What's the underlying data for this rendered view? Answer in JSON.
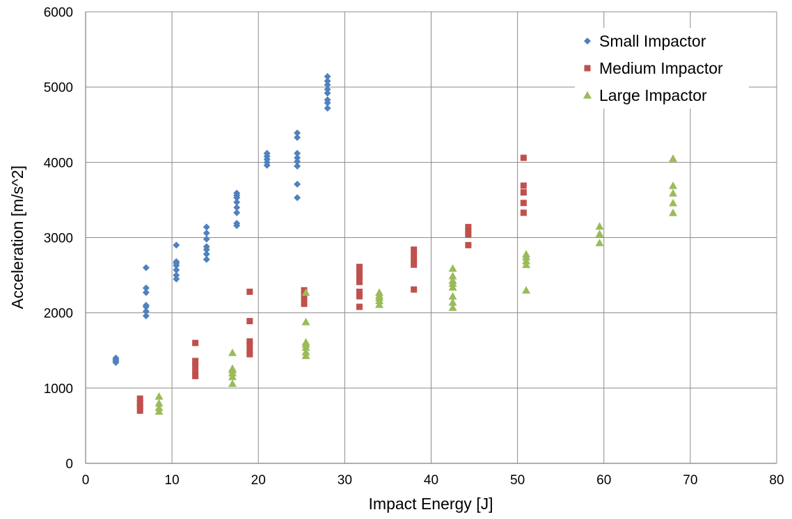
{
  "chart_data": {
    "type": "scatter",
    "title": "",
    "xlabel": "Impact Energy [J]",
    "ylabel": "Acceleration [m/s^2]",
    "xlim": [
      0,
      80
    ],
    "ylim": [
      0,
      6000
    ],
    "xticks": [
      "0",
      "10",
      "20",
      "30",
      "40",
      "50",
      "60",
      "70",
      "80"
    ],
    "yticks": [
      "0",
      "1000",
      "2000",
      "3000",
      "4000",
      "5000",
      "6000"
    ],
    "grid": true,
    "legend_position": "top-right",
    "series": [
      {
        "name": "Small Impactor",
        "marker": "diamond",
        "color": "#4F81BD",
        "points": [
          [
            3.5,
            1340
          ],
          [
            3.5,
            1360
          ],
          [
            3.5,
            1380
          ],
          [
            3.5,
            1400
          ],
          [
            7.0,
            1960
          ],
          [
            7.0,
            2020
          ],
          [
            7.0,
            2080
          ],
          [
            7.0,
            2100
          ],
          [
            7.0,
            2270
          ],
          [
            7.0,
            2330
          ],
          [
            7.0,
            2600
          ],
          [
            10.5,
            2450
          ],
          [
            10.5,
            2500
          ],
          [
            10.5,
            2570
          ],
          [
            10.5,
            2630
          ],
          [
            10.5,
            2660
          ],
          [
            10.5,
            2680
          ],
          [
            10.5,
            2900
          ],
          [
            14.0,
            2710
          ],
          [
            14.0,
            2780
          ],
          [
            14.0,
            2840
          ],
          [
            14.0,
            2880
          ],
          [
            14.0,
            2980
          ],
          [
            14.0,
            3060
          ],
          [
            14.0,
            3140
          ],
          [
            17.5,
            3160
          ],
          [
            17.5,
            3190
          ],
          [
            17.5,
            3330
          ],
          [
            17.5,
            3400
          ],
          [
            17.5,
            3470
          ],
          [
            17.5,
            3530
          ],
          [
            17.5,
            3560
          ],
          [
            17.5,
            3590
          ],
          [
            21.0,
            3960
          ],
          [
            21.0,
            4000
          ],
          [
            21.0,
            4040
          ],
          [
            21.0,
            4080
          ],
          [
            21.0,
            4120
          ],
          [
            24.5,
            3530
          ],
          [
            24.5,
            3710
          ],
          [
            24.5,
            3950
          ],
          [
            24.5,
            4010
          ],
          [
            24.5,
            4060
          ],
          [
            24.5,
            4120
          ],
          [
            24.5,
            4330
          ],
          [
            24.5,
            4390
          ],
          [
            28.0,
            4720
          ],
          [
            28.0,
            4790
          ],
          [
            28.0,
            4830
          ],
          [
            28.0,
            4920
          ],
          [
            28.0,
            4970
          ],
          [
            28.0,
            5030
          ],
          [
            28.0,
            5080
          ],
          [
            28.0,
            5140
          ]
        ]
      },
      {
        "name": "Medium Impactor",
        "marker": "square",
        "color": "#C0504D",
        "points": [
          [
            6.3,
            700
          ],
          [
            6.3,
            760
          ],
          [
            6.3,
            800
          ],
          [
            6.3,
            860
          ],
          [
            12.7,
            1160
          ],
          [
            12.7,
            1220
          ],
          [
            12.7,
            1300
          ],
          [
            12.7,
            1360
          ],
          [
            12.7,
            1600
          ],
          [
            19.0,
            1450
          ],
          [
            19.0,
            1500
          ],
          [
            19.0,
            1580
          ],
          [
            19.0,
            1620
          ],
          [
            19.0,
            1890
          ],
          [
            19.0,
            2280
          ],
          [
            25.3,
            2120
          ],
          [
            25.3,
            2200
          ],
          [
            25.3,
            2250
          ],
          [
            25.3,
            2300
          ],
          [
            31.7,
            2080
          ],
          [
            31.7,
            2220
          ],
          [
            31.7,
            2280
          ],
          [
            31.7,
            2410
          ],
          [
            31.7,
            2480
          ],
          [
            31.7,
            2530
          ],
          [
            31.7,
            2610
          ],
          [
            38.0,
            2310
          ],
          [
            38.0,
            2640
          ],
          [
            38.0,
            2700
          ],
          [
            38.0,
            2780
          ],
          [
            38.0,
            2840
          ],
          [
            44.3,
            2900
          ],
          [
            44.3,
            3040
          ],
          [
            44.3,
            3090
          ],
          [
            44.3,
            3140
          ],
          [
            50.7,
            3330
          ],
          [
            50.7,
            3460
          ],
          [
            50.7,
            3600
          ],
          [
            50.7,
            3690
          ],
          [
            50.7,
            4060
          ]
        ]
      },
      {
        "name": "Large Impactor",
        "marker": "triangle",
        "color": "#9BBB59",
        "points": [
          [
            8.5,
            690
          ],
          [
            8.5,
            740
          ],
          [
            8.5,
            800
          ],
          [
            8.5,
            890
          ],
          [
            17.0,
            1060
          ],
          [
            17.0,
            1150
          ],
          [
            17.0,
            1200
          ],
          [
            17.0,
            1240
          ],
          [
            17.0,
            1260
          ],
          [
            17.0,
            1470
          ],
          [
            25.5,
            1430
          ],
          [
            25.5,
            1480
          ],
          [
            25.5,
            1540
          ],
          [
            25.5,
            1580
          ],
          [
            25.5,
            1610
          ],
          [
            25.5,
            1880
          ],
          [
            25.5,
            2270
          ],
          [
            34.0,
            2110
          ],
          [
            34.0,
            2160
          ],
          [
            34.0,
            2200
          ],
          [
            34.0,
            2230
          ],
          [
            34.0,
            2270
          ],
          [
            42.5,
            2070
          ],
          [
            42.5,
            2140
          ],
          [
            42.5,
            2220
          ],
          [
            42.5,
            2340
          ],
          [
            42.5,
            2390
          ],
          [
            42.5,
            2430
          ],
          [
            42.5,
            2490
          ],
          [
            42.5,
            2590
          ],
          [
            51.0,
            2300
          ],
          [
            51.0,
            2640
          ],
          [
            51.0,
            2690
          ],
          [
            51.0,
            2740
          ],
          [
            51.0,
            2780
          ],
          [
            59.5,
            2930
          ],
          [
            59.5,
            3050
          ],
          [
            59.5,
            3150
          ],
          [
            68.0,
            3330
          ],
          [
            68.0,
            3460
          ],
          [
            68.0,
            3590
          ],
          [
            68.0,
            3690
          ],
          [
            68.0,
            4050
          ]
        ]
      }
    ]
  }
}
